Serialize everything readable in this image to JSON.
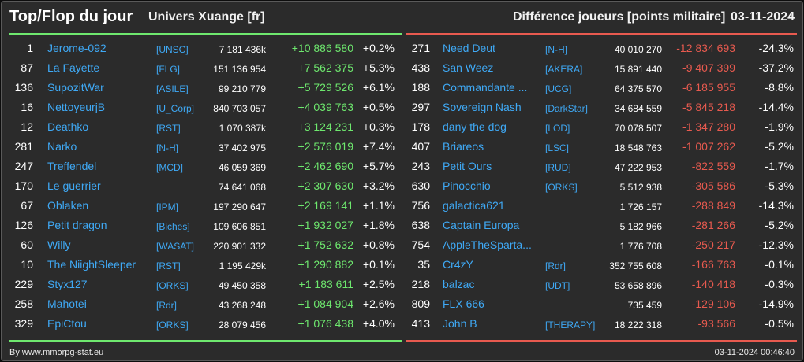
{
  "header": {
    "title": "Top/Flop du jour",
    "universe": "Univers Xuange [fr]",
    "metric": "Différence joueurs [points militaire]",
    "date": "03-11-2024"
  },
  "top": [
    {
      "rank": "1",
      "name": "Jerome-092",
      "alliance": "[UNSC]",
      "points": "7 181 436k",
      "diff": "+10 886 580",
      "pct": "+0.2%"
    },
    {
      "rank": "87",
      "name": "La Fayette",
      "alliance": "[FLG]",
      "points": "151 136 954",
      "diff": "+7 562 375",
      "pct": "+5.3%"
    },
    {
      "rank": "136",
      "name": "SupozitWar",
      "alliance": "[ASILE]",
      "points": "99 210 779",
      "diff": "+5 729 526",
      "pct": "+6.1%"
    },
    {
      "rank": "16",
      "name": "NettoyeurjB",
      "alliance": "[U_Corp]",
      "points": "840 703 057",
      "diff": "+4 039 763",
      "pct": "+0.5%"
    },
    {
      "rank": "12",
      "name": "Deathko",
      "alliance": "[RST]",
      "points": "1 070 387k",
      "diff": "+3 124 231",
      "pct": "+0.3%"
    },
    {
      "rank": "281",
      "name": "Narko",
      "alliance": "[N-H]",
      "points": "37 402 975",
      "diff": "+2 576 019",
      "pct": "+7.4%"
    },
    {
      "rank": "247",
      "name": "Treffendel",
      "alliance": "[MCD]",
      "points": "46 059 369",
      "diff": "+2 462 690",
      "pct": "+5.7%"
    },
    {
      "rank": "170",
      "name": "Le guerrier",
      "alliance": "",
      "points": "74 641 068",
      "diff": "+2 307 630",
      "pct": "+3.2%"
    },
    {
      "rank": "67",
      "name": "Oblaken",
      "alliance": "[IPM]",
      "points": "197 290 647",
      "diff": "+2 169 141",
      "pct": "+1.1%"
    },
    {
      "rank": "126",
      "name": "Petit dragon",
      "alliance": "[Biches]",
      "points": "109 606 851",
      "diff": "+1 932 027",
      "pct": "+1.8%"
    },
    {
      "rank": "60",
      "name": "Willy",
      "alliance": "[WASAT]",
      "points": "220 901 332",
      "diff": "+1 752 632",
      "pct": "+0.8%"
    },
    {
      "rank": "10",
      "name": "The NiightSleeper",
      "alliance": "[RST]",
      "points": "1 195 429k",
      "diff": "+1 290 882",
      "pct": "+0.1%"
    },
    {
      "rank": "229",
      "name": "Styx127",
      "alliance": "[ORKS]",
      "points": "49 450 358",
      "diff": "+1 183 611",
      "pct": "+2.5%"
    },
    {
      "rank": "258",
      "name": "Mahotei",
      "alliance": "[Rdr]",
      "points": "43 268 248",
      "diff": "+1 084 904",
      "pct": "+2.6%"
    },
    {
      "rank": "329",
      "name": "EpiCtou",
      "alliance": "[ORKS]",
      "points": "28 079 456",
      "diff": "+1 076 438",
      "pct": "+4.0%"
    }
  ],
  "flop": [
    {
      "rank": "271",
      "name": "Need Deut",
      "alliance": "[N-H]",
      "points": "40 010 270",
      "diff": "-12 834 693",
      "pct": "-24.3%"
    },
    {
      "rank": "438",
      "name": "San Weez",
      "alliance": "[AKERA]",
      "points": "15 891 440",
      "diff": "-9 407 399",
      "pct": "-37.2%"
    },
    {
      "rank": "188",
      "name": "Commandante ...",
      "alliance": "[UCG]",
      "points": "64 375 570",
      "diff": "-6 185 955",
      "pct": "-8.8%"
    },
    {
      "rank": "297",
      "name": "Sovereign Nash",
      "alliance": "[DarkStar]",
      "points": "34 684 559",
      "diff": "-5 845 218",
      "pct": "-14.4%"
    },
    {
      "rank": "178",
      "name": "dany the dog",
      "alliance": "[LOD]",
      "points": "70 078 507",
      "diff": "-1 347 280",
      "pct": "-1.9%"
    },
    {
      "rank": "407",
      "name": "Briareos",
      "alliance": "[LSC]",
      "points": "18 548 763",
      "diff": "-1 007 262",
      "pct": "-5.2%"
    },
    {
      "rank": "243",
      "name": "Petit Ours",
      "alliance": "[RUD]",
      "points": "47 222 953",
      "diff": "-822 559",
      "pct": "-1.7%"
    },
    {
      "rank": "630",
      "name": "Pinocchio",
      "alliance": "[ORKS]",
      "points": "5 512 938",
      "diff": "-305 586",
      "pct": "-5.3%"
    },
    {
      "rank": "756",
      "name": "galactica621",
      "alliance": "",
      "points": "1 726 157",
      "diff": "-288 849",
      "pct": "-14.3%"
    },
    {
      "rank": "638",
      "name": "Captain Europa",
      "alliance": "",
      "points": "5 182 966",
      "diff": "-281 266",
      "pct": "-5.2%"
    },
    {
      "rank": "754",
      "name": "AppleTheSparta...",
      "alliance": "",
      "points": "1 776 708",
      "diff": "-250 217",
      "pct": "-12.3%"
    },
    {
      "rank": "35",
      "name": "Cr4zY",
      "alliance": "[Rdr]",
      "points": "352 755 608",
      "diff": "-166 763",
      "pct": "-0.1%"
    },
    {
      "rank": "218",
      "name": "balzac",
      "alliance": "[UDT]",
      "points": "53 658 896",
      "diff": "-140 418",
      "pct": "-0.3%"
    },
    {
      "rank": "809",
      "name": "FLX 666",
      "alliance": "",
      "points": "735 459",
      "diff": "-129 106",
      "pct": "-14.9%"
    },
    {
      "rank": "413",
      "name": "John B",
      "alliance": "[THERAPY]",
      "points": "18 222 318",
      "diff": "-93 566",
      "pct": "-0.5%"
    }
  ],
  "footer": {
    "credit": "By www.mmorpg-stat.eu",
    "timestamp": "03-11-2024 00:46:40"
  },
  "colors": {
    "positive": "#6ee86e",
    "negative": "#e85a4f",
    "link": "#3fa9f5",
    "background": "#2b2b2b"
  }
}
